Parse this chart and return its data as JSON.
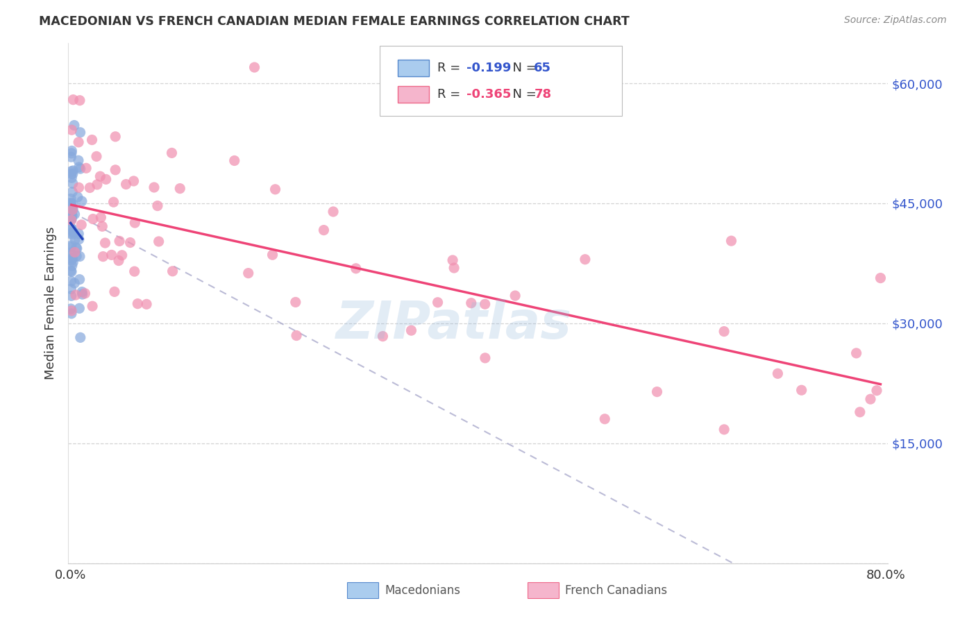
{
  "title": "MACEDONIAN VS FRENCH CANADIAN MEDIAN FEMALE EARNINGS CORRELATION CHART",
  "source": "Source: ZipAtlas.com",
  "ylabel": "Median Female Earnings",
  "ytick_positions": [
    0,
    15000,
    30000,
    45000,
    60000
  ],
  "ytick_labels_right": [
    "$15,000",
    "$30,000",
    "$45,000",
    "$60,000"
  ],
  "ymax": 65000,
  "xmax": 0.8,
  "mac_R": -0.199,
  "mac_N": 65,
  "fc_R": -0.365,
  "fc_N": 78,
  "macedonian_scatter_color": "#88aadd",
  "french_canadian_scatter_color": "#f090b0",
  "macedonian_line_color": "#2244bb",
  "french_canadian_line_color": "#ee4477",
  "dashed_line_color": "#aaaacc",
  "background_color": "#ffffff",
  "grid_color": "#cccccc",
  "watermark_text": "ZIPatlas",
  "watermark_color": "#99bbdd",
  "title_color": "#333333",
  "source_color": "#888888",
  "axis_text_color": "#333333",
  "right_tick_color": "#3355cc",
  "legend_patch_mac": "#aaccee",
  "legend_patch_mac_edge": "#5588cc",
  "legend_patch_fc": "#f5b5cc",
  "legend_patch_fc_edge": "#ee6688",
  "legend_R_color": "#333333",
  "legend_value_color": "#3355cc",
  "legend_fc_value_color": "#ee4477",
  "bottom_label_color": "#555555"
}
